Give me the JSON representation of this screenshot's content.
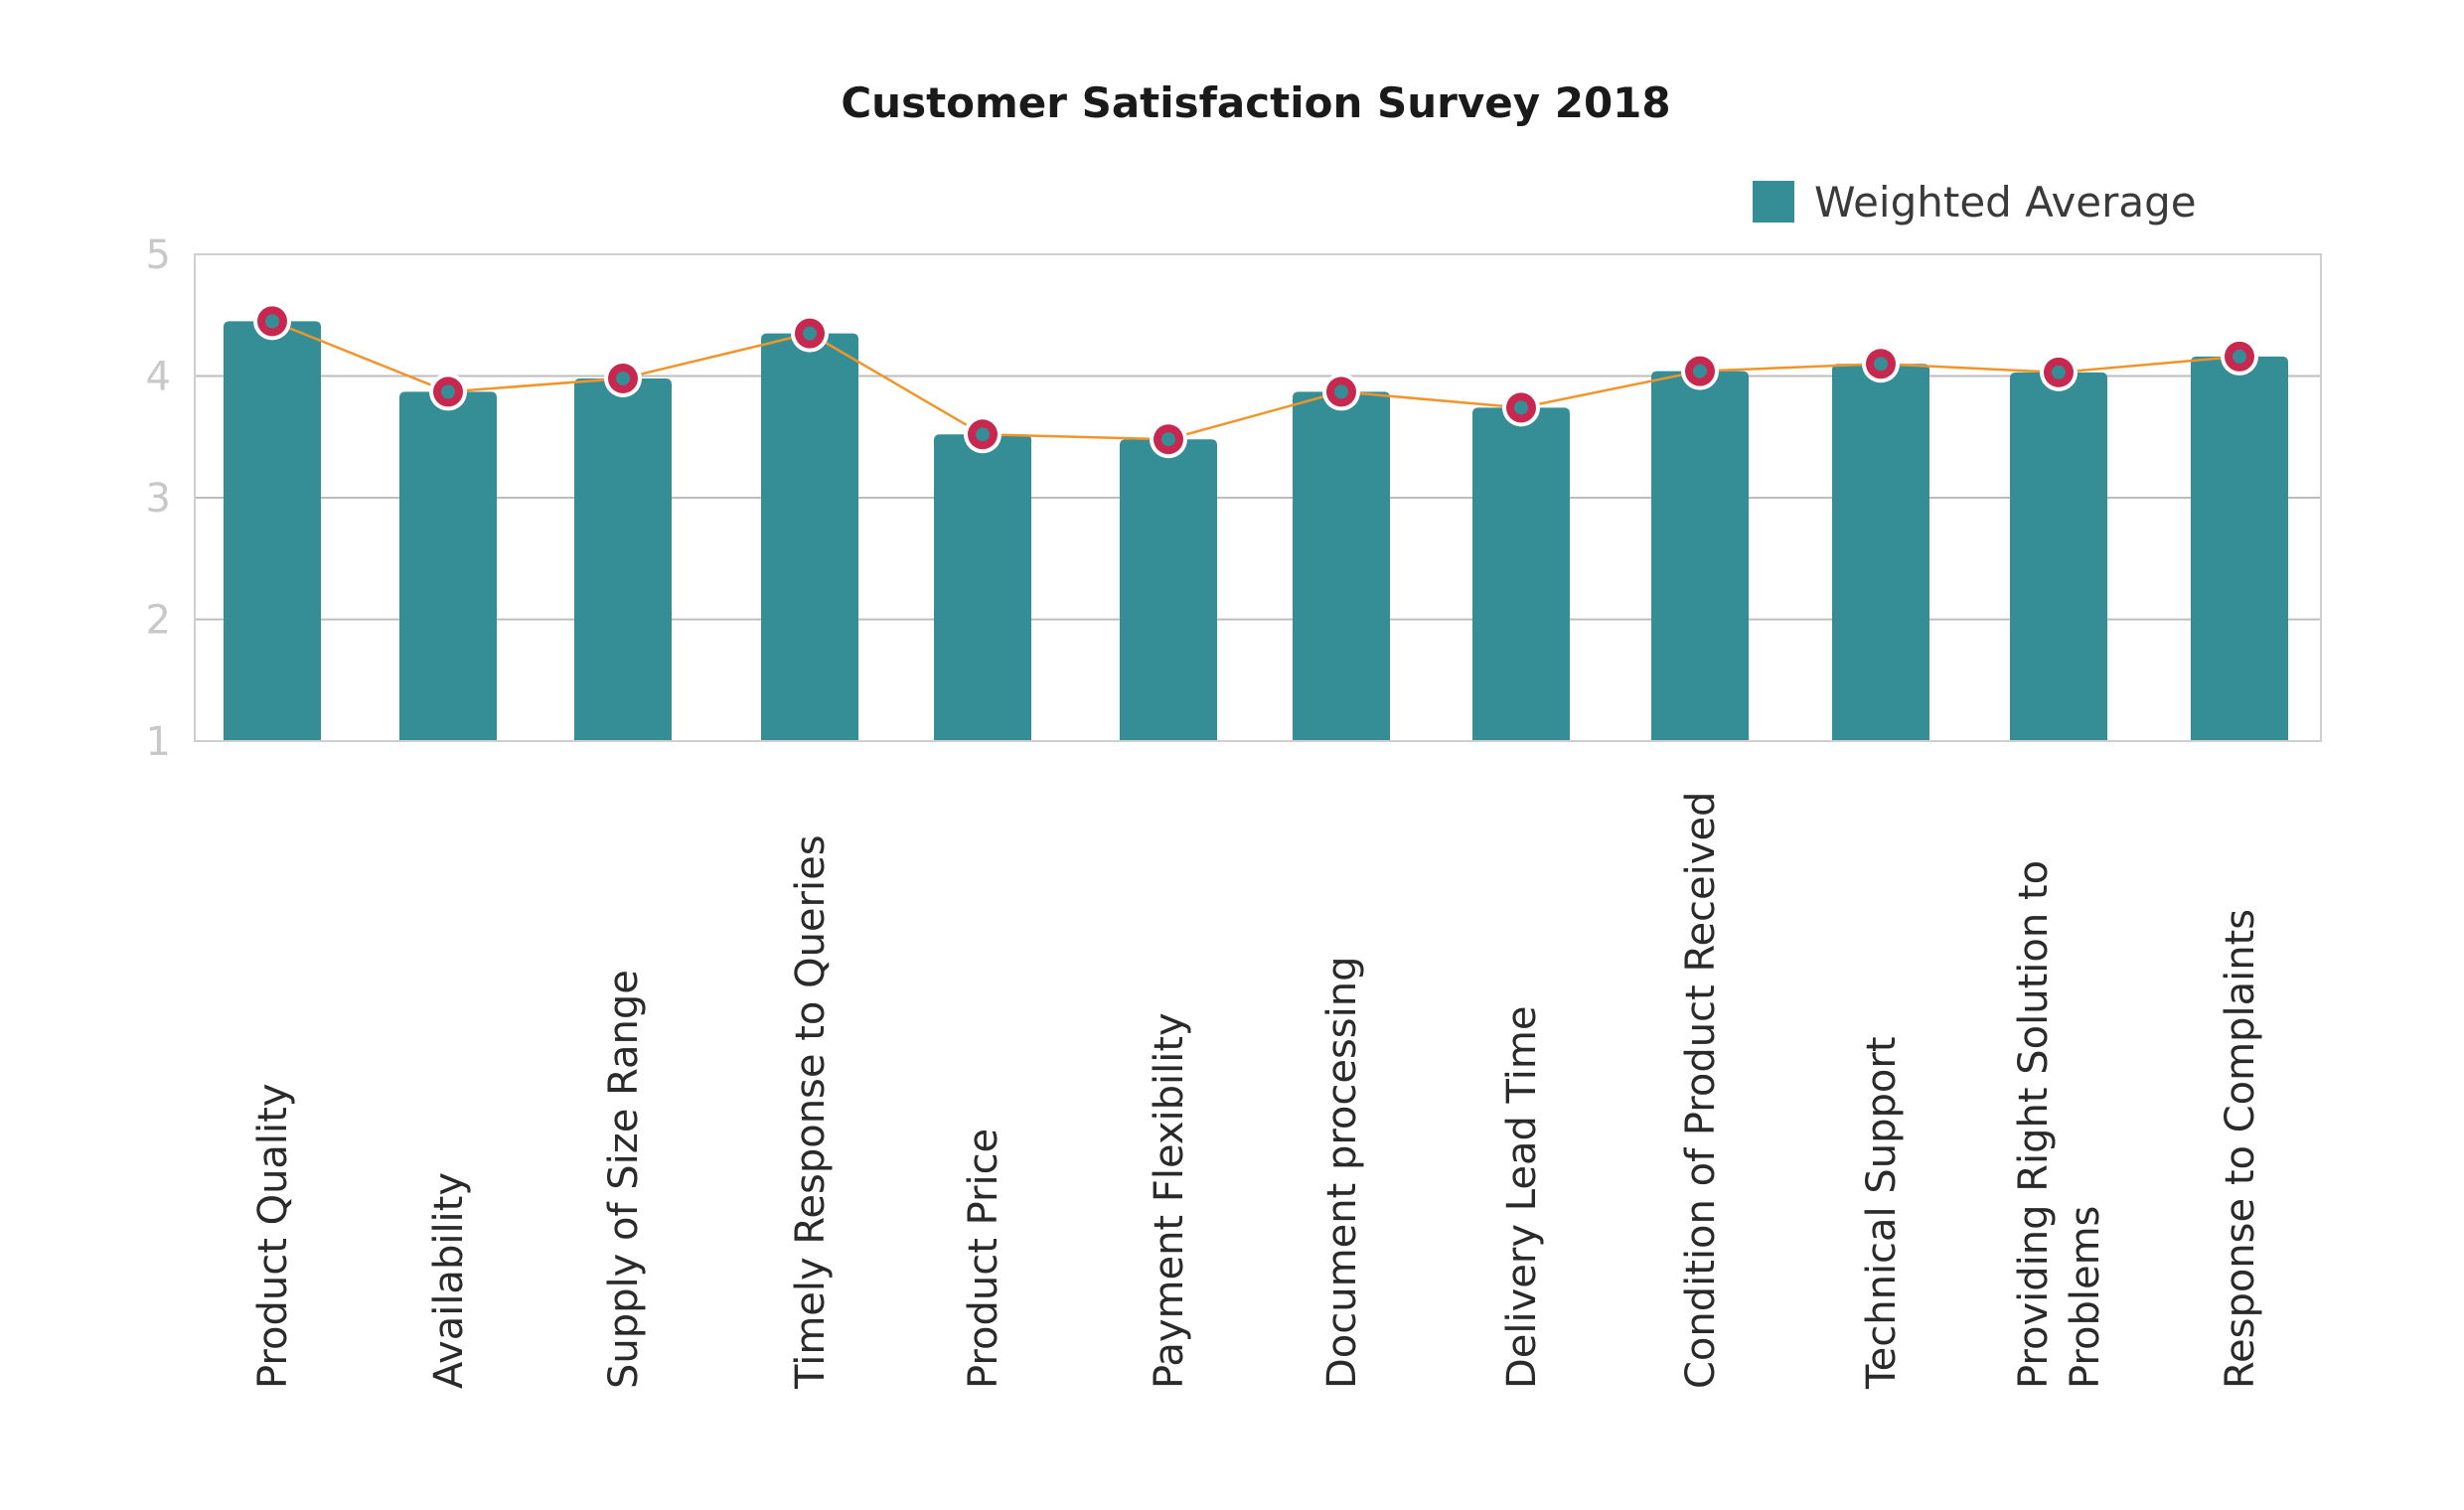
{
  "chart_data": {
    "type": "bar",
    "title": "Customer Satisfaction Survey 2018",
    "categories": [
      "Product Quality",
      "Availability",
      "Supply of Size Range",
      "Timely Response to Queries",
      "Product Price",
      "Payment Flexibility",
      "Document processing",
      "Delivery Lead Time",
      "Condition of Product Received",
      "Technical Support",
      "Providing Right Solution to Problems",
      "Response to Complaints"
    ],
    "series": [
      {
        "name": "Weighted Average",
        "values": [
          4.45,
          3.87,
          3.98,
          4.35,
          3.52,
          3.48,
          3.87,
          3.74,
          4.04,
          4.1,
          4.03,
          4.16
        ]
      }
    ],
    "ylim": [
      1,
      5
    ],
    "yticks": [
      1,
      2,
      3,
      4,
      5
    ],
    "grid": true,
    "legend_position": "top-right",
    "colors": {
      "bar": "#358e96",
      "line": "#f0952a",
      "marker_fill": "#358e96",
      "marker_ring": "#c8274f",
      "marker_outline": "#ffffff",
      "grid": "#bdbdbd",
      "frame": "#cfcfcf"
    }
  }
}
